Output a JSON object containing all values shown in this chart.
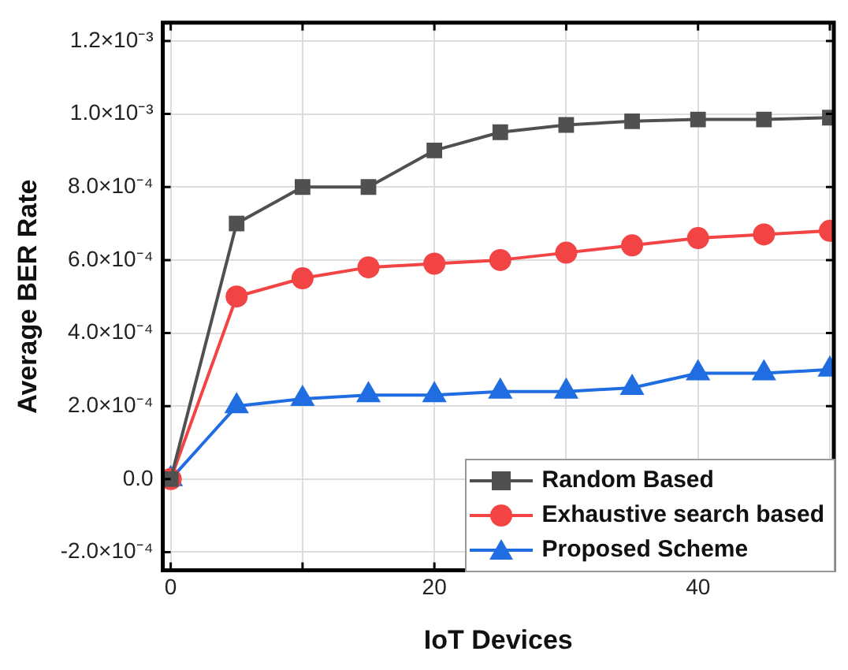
{
  "chart_data": {
    "type": "line",
    "xlabel": "IoT Devices",
    "ylabel": "Average BER Rate",
    "x": [
      0,
      5,
      10,
      15,
      20,
      25,
      30,
      35,
      40,
      45,
      50
    ],
    "series": [
      {
        "name": "Random Based",
        "color": "#505050",
        "marker": "square",
        "values": [
          0,
          0.0007,
          0.0008,
          0.0008,
          0.0009,
          0.00095,
          0.00097,
          0.00098,
          0.000985,
          0.000985,
          0.00099
        ]
      },
      {
        "name": "Exhaustive search based",
        "color": "#f24444",
        "marker": "circle",
        "values": [
          0,
          0.0005,
          0.00055,
          0.00058,
          0.00059,
          0.0006,
          0.00062,
          0.00064,
          0.00066,
          0.00067,
          0.00068
        ]
      },
      {
        "name": "Proposed Scheme",
        "color": "#1f6de0",
        "marker": "triangle",
        "values": [
          0,
          0.0002,
          0.00022,
          0.00023,
          0.00023,
          0.00024,
          0.00024,
          0.00025,
          0.00029,
          0.00029,
          0.0003
        ]
      }
    ],
    "xlim": [
      -0.6,
      50.3
    ],
    "xticks": [
      0,
      {
        "value": 10,
        "label": null
      },
      20,
      {
        "value": 30,
        "label": null
      },
      40,
      {
        "value": 50,
        "label": null
      }
    ],
    "ylim": [
      -0.00025,
      0.00125
    ],
    "yticks": [
      {
        "value": -0.0002,
        "label": "-2.0×10⁻⁴"
      },
      {
        "value": 0,
        "label": "0.0"
      },
      {
        "value": 0.0002,
        "label": "2.0×10⁻⁴"
      },
      {
        "value": 0.0004,
        "label": "4.0×10⁻⁴"
      },
      {
        "value": 0.0006,
        "label": "6.0×10⁻⁴"
      },
      {
        "value": 0.0008,
        "label": "8.0×10⁻⁴"
      },
      {
        "value": 0.001,
        "label": "1.0×10⁻³"
      },
      {
        "value": 0.0012,
        "label": "1.2×10⁻³"
      }
    ],
    "grid": true,
    "legend": "bottom right",
    "line_style": "solid"
  }
}
